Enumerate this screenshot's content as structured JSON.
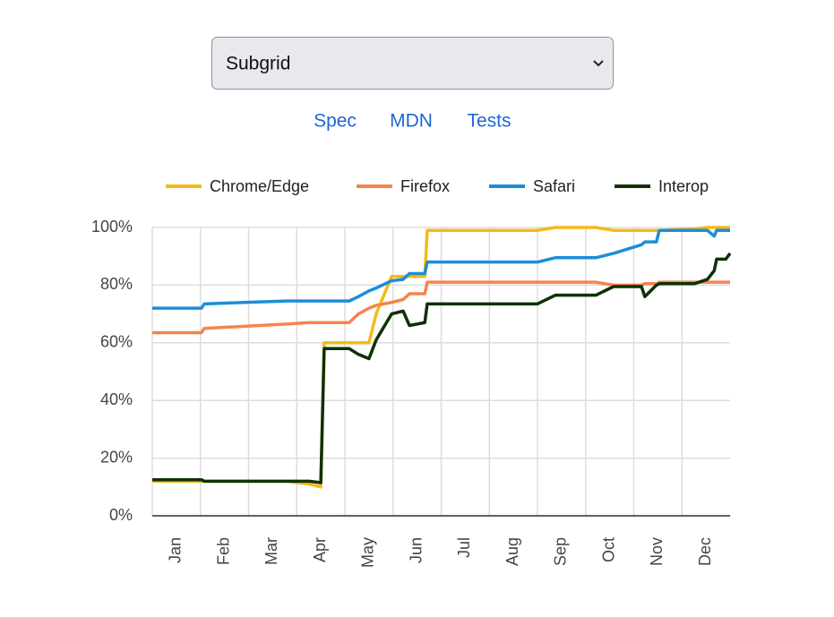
{
  "select": {
    "value": "Subgrid"
  },
  "links": [
    "Spec",
    "MDN",
    "Tests"
  ],
  "chart_data": {
    "type": "line",
    "x": [
      0,
      1.02,
      1.08,
      2.79,
      3.26,
      3.5,
      3.57,
      4.09,
      4.28,
      4.5,
      4.65,
      4.97,
      5.21,
      5.34,
      5.66,
      5.71,
      8.0,
      8.37,
      9.21,
      9.58,
      10.16,
      10.23,
      10.47,
      10.53,
      11.26,
      11.53,
      11.67,
      11.72,
      11.91,
      12
    ],
    "xlim": [
      0,
      12
    ],
    "xticks": [
      {
        "value": 0,
        "label": "Jan"
      },
      {
        "value": 1,
        "label": "Feb"
      },
      {
        "value": 2,
        "label": "Mar"
      },
      {
        "value": 3,
        "label": "Apr"
      },
      {
        "value": 4,
        "label": "May"
      },
      {
        "value": 5,
        "label": "Jun"
      },
      {
        "value": 6,
        "label": "Jul"
      },
      {
        "value": 7,
        "label": "Aug"
      },
      {
        "value": 8,
        "label": "Sep"
      },
      {
        "value": 9,
        "label": "Oct"
      },
      {
        "value": 10,
        "label": "Nov"
      },
      {
        "value": 11,
        "label": "Dec"
      }
    ],
    "ylim": [
      0,
      100
    ],
    "yticks": [
      {
        "value": 0,
        "label": "0%"
      },
      {
        "value": 20,
        "label": "20%"
      },
      {
        "value": 40,
        "label": "40%"
      },
      {
        "value": 60,
        "label": "60%"
      },
      {
        "value": 80,
        "label": "80%"
      },
      {
        "value": 100,
        "label": "100%"
      }
    ],
    "grid": true,
    "series": [
      {
        "name": "Chrome/Edge",
        "color": "#f6b91b",
        "values": [
          12,
          12,
          12,
          12,
          11,
          10,
          60,
          60,
          60,
          60,
          70,
          83,
          83,
          83,
          83,
          99,
          99,
          100,
          100,
          99,
          99,
          99,
          99,
          99,
          99.5,
          100,
          100,
          100,
          100,
          100
        ]
      },
      {
        "name": "Firefox",
        "color": "#f5844c",
        "values": [
          63.5,
          63.5,
          65,
          66.5,
          67,
          67,
          67,
          67,
          70,
          72,
          73,
          74,
          75,
          77,
          77,
          81,
          81,
          81,
          81,
          80,
          80,
          80.5,
          80.5,
          81,
          81,
          81,
          81,
          81,
          81,
          81
        ]
      },
      {
        "name": "Safari",
        "color": "#1b8ed8",
        "values": [
          72,
          72,
          73.5,
          74.5,
          74.5,
          74.5,
          74.5,
          74.5,
          76,
          78,
          79,
          81.5,
          82,
          84,
          84,
          88,
          88,
          89.5,
          89.5,
          91,
          94,
          95,
          95,
          99,
          99,
          99,
          97,
          99,
          99,
          99
        ]
      },
      {
        "name": "Interop",
        "color": "#0e3105",
        "values": [
          12.5,
          12.5,
          12,
          12,
          12,
          11.5,
          58,
          58,
          56,
          54.5,
          61,
          70,
          71,
          66,
          67,
          73.5,
          73.5,
          76.5,
          76.5,
          79.5,
          79.5,
          76,
          80,
          80.5,
          80.5,
          82,
          85,
          89,
          89,
          91
        ]
      }
    ]
  }
}
